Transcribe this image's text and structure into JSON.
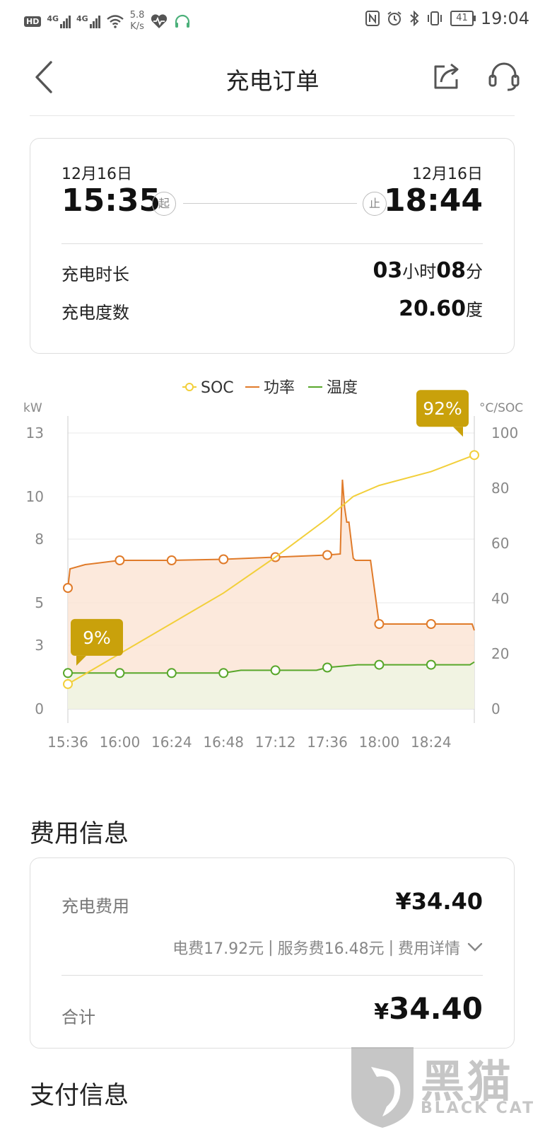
{
  "status_bar": {
    "hd": "HD",
    "sim1": "4G",
    "sim2": "4G",
    "net_speed_value": "5.8",
    "net_speed_unit": "K/s",
    "battery": "41",
    "time": "19:04"
  },
  "nav": {
    "title": "充电订单"
  },
  "session": {
    "start_date": "12月16日",
    "start_time": "15:35",
    "start_badge": "起",
    "end_date": "12月16日",
    "end_time": "18:44",
    "end_badge": "止",
    "duration_label": "充电时长",
    "duration_hours": "03",
    "duration_hours_unit": "小时",
    "duration_minutes": "08",
    "duration_minutes_unit": "分",
    "energy_label": "充电度数",
    "energy_value": "20.60",
    "energy_unit": "度"
  },
  "chart_data": {
    "type": "line",
    "legend": [
      "SOC",
      "功率",
      "温度"
    ],
    "legend_position": "top-center",
    "left_axis_label": "kW",
    "right_axis_label": "°C/SOC",
    "left_ticks": [
      0,
      3,
      5,
      8,
      10,
      13
    ],
    "right_ticks": [
      0,
      20,
      40,
      60,
      80,
      100
    ],
    "left_ylim": [
      0,
      13
    ],
    "right_ylim": [
      0,
      100
    ],
    "x_ticks": [
      "15:36",
      "16:00",
      "16:24",
      "16:48",
      "17:12",
      "17:36",
      "18:00",
      "18:24"
    ],
    "x_range_minutes": [
      0,
      188
    ],
    "grid": true,
    "series": [
      {
        "name": "SOC",
        "axis": "right",
        "color": "#f2cf3a",
        "x": [
          0,
          24,
          48,
          72,
          96,
          120,
          132,
          144,
          168,
          188
        ],
        "y": [
          9,
          20,
          31,
          42,
          55,
          69,
          77,
          81,
          86,
          92
        ],
        "marked_points": [
          [
            0,
            9
          ],
          [
            188,
            92
          ]
        ],
        "labels": [
          {
            "x": 0,
            "text": "9%"
          },
          {
            "x": 188,
            "text": "92%"
          }
        ]
      },
      {
        "name": "功率",
        "axis": "left",
        "color": "#e07b2a",
        "fill": "#fbe3d3",
        "x": [
          0,
          1,
          8,
          24,
          48,
          72,
          96,
          120,
          126,
          126.5,
          127,
          128,
          129,
          130,
          132,
          133,
          140,
          144,
          168,
          187,
          188
        ],
        "y": [
          5.7,
          6.6,
          6.8,
          7.0,
          7.0,
          7.05,
          7.15,
          7.25,
          7.3,
          9.2,
          10.8,
          9.5,
          8.8,
          8.8,
          7.1,
          7.0,
          7.0,
          4.0,
          4.0,
          4.0,
          3.7
        ],
        "marked_points": [
          [
            0,
            5.7
          ],
          [
            24,
            7.0
          ],
          [
            48,
            7.0
          ],
          [
            72,
            7.05
          ],
          [
            96,
            7.15
          ],
          [
            120,
            7.25
          ],
          [
            144,
            4.0
          ],
          [
            168,
            4.0
          ]
        ]
      },
      {
        "name": "温度",
        "axis": "right",
        "color": "#58a72b",
        "fill": "#eef5e4",
        "x": [
          0,
          24,
          48,
          72,
          80,
          96,
          115,
          120,
          134,
          144,
          168,
          186,
          188
        ],
        "y": [
          13,
          13,
          13,
          13,
          14,
          14,
          14,
          15,
          16,
          16,
          16,
          16,
          17
        ],
        "marked_points": [
          [
            0,
            13
          ],
          [
            24,
            13
          ],
          [
            48,
            13
          ],
          [
            72,
            13
          ],
          [
            96,
            14
          ],
          [
            120,
            15
          ],
          [
            144,
            16
          ],
          [
            168,
            16
          ]
        ]
      }
    ]
  },
  "fee": {
    "section_title": "费用信息",
    "charge_label": "充电费用",
    "charge_amount": "¥34.40",
    "electricity_fee": "电费17.92元",
    "service_fee": "服务费16.48元",
    "detail_link": "费用详情",
    "separator": "|",
    "total_label": "合计",
    "total_currency": "¥",
    "total_amount": "34.40"
  },
  "payment": {
    "section_title": "支付信息"
  },
  "watermark": {
    "text": "黑猫",
    "subtext": "BLACK CAT"
  }
}
